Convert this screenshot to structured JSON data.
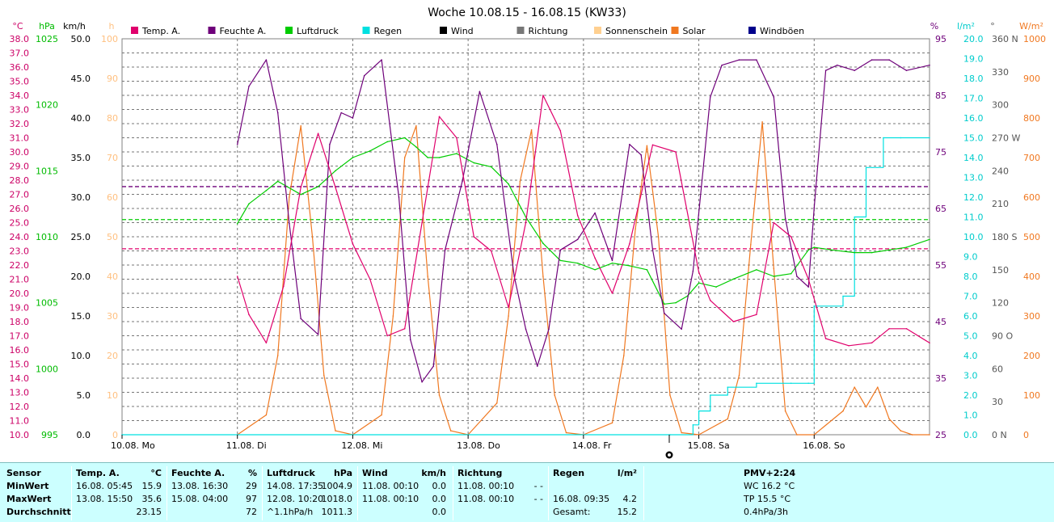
{
  "chart_data": {
    "type": "line",
    "title": "Woche 10.08.15 - 16.08.15 (KW33)",
    "x_labels": [
      "10.08. Mo",
      "11.08. Di",
      "12.08. Mi",
      "13.08. Do",
      "14.08. Fr",
      "15.08. Sa",
      "16.08. So"
    ],
    "legend": [
      {
        "name": "Temp. A.",
        "color": "#e0006c"
      },
      {
        "name": "Feuchte A.",
        "color": "#6e007a"
      },
      {
        "name": "Luftdruck",
        "color": "#00cc00"
      },
      {
        "name": "Regen",
        "color": "#00e0e0"
      },
      {
        "name": "Wind",
        "color": "#000000"
      },
      {
        "name": "Richtung",
        "color": "#777777"
      },
      {
        "name": "Sonnenschein",
        "color": "#ffd090"
      },
      {
        "name": "Solar",
        "color": "#f07820"
      },
      {
        "name": "Windböen",
        "color": "#00008b"
      }
    ],
    "axes": [
      {
        "unit": "°C",
        "color": "#cc0066",
        "ticks": [
          "38.0",
          "37.0",
          "36.0",
          "35.0",
          "34.0",
          "33.0",
          "32.0",
          "31.0",
          "30.0",
          "29.0",
          "28.0",
          "27.0",
          "26.0",
          "25.0",
          "24.0",
          "23.0",
          "22.0",
          "21.0",
          "20.0",
          "19.0",
          "18.0",
          "17.0",
          "16.0",
          "15.0",
          "14.0",
          "13.0",
          "12.0",
          "11.0",
          "10.0"
        ]
      },
      {
        "unit": "hPa",
        "color": "#00bb00",
        "ticks": [
          "1025",
          "1020",
          "1015",
          "1010",
          "1005",
          "1000",
          "995"
        ]
      },
      {
        "unit": "km/h",
        "color": "#000000",
        "ticks": [
          "50.0",
          "45.0",
          "40.0",
          "35.0",
          "30.0",
          "25.0",
          "20.0",
          "15.0",
          "10.0",
          "5.0",
          "0.0"
        ]
      },
      {
        "unit": "h",
        "color": "#ffc080",
        "ticks": [
          "100",
          "90",
          "80",
          "70",
          "60",
          "50",
          "40",
          "30",
          "20",
          "10",
          "0"
        ]
      },
      {
        "unit": "%",
        "color": "#6e007a",
        "ticks": [
          "95",
          "85",
          "75",
          "65",
          "55",
          "45",
          "35",
          "25"
        ]
      },
      {
        "unit": "l/m²",
        "color": "#00cccc",
        "ticks": [
          "20.0",
          "19.0",
          "18.0",
          "17.0",
          "16.0",
          "15.0",
          "14.0",
          "13.0",
          "12.0",
          "11.0",
          "10.0",
          "9.0",
          "8.0",
          "7.0",
          "6.0",
          "5.0",
          "4.0",
          "3.0",
          "2.0",
          "1.0",
          "0.0"
        ]
      },
      {
        "unit": "°",
        "color": "#555555",
        "ticks": [
          "360 N",
          "330",
          "300",
          "270 W",
          "240",
          "210",
          "180 S",
          "150",
          "120",
          "90 O",
          "60",
          "30",
          "0 N"
        ]
      },
      {
        "unit": "W/m²",
        "color": "#f07820",
        "ticks": [
          "1000",
          "900",
          "800",
          "700",
          "600",
          "500",
          "400",
          "300",
          "200",
          "100",
          "0"
        ]
      }
    ],
    "x_range_days": [
      0,
      7
    ],
    "temp_range": [
      10,
      38
    ],
    "humidity_range": [
      25,
      100
    ],
    "pressure_range": [
      995,
      1025
    ],
    "rain_range": [
      0,
      20
    ],
    "solar_range": [
      0,
      1000
    ],
    "series": [
      {
        "name": "Temp. A.",
        "x": [
          1.0,
          1.1,
          1.25,
          1.4,
          1.55,
          1.7,
          1.85,
          2.0,
          2.15,
          2.3,
          2.45,
          2.6,
          2.75,
          2.9,
          3.05,
          3.2,
          3.35,
          3.5,
          3.65,
          3.8,
          3.95,
          4.1,
          4.25,
          4.4,
          4.6,
          4.8,
          5.0,
          5.1,
          5.3,
          5.5,
          5.65,
          5.8,
          5.95,
          6.1,
          6.3,
          6.5,
          6.65,
          6.8,
          7.0
        ],
        "y": [
          21.2,
          18.5,
          16.5,
          20.5,
          27.5,
          31.3,
          27.5,
          23.5,
          21.0,
          17.0,
          17.5,
          25.0,
          32.5,
          31.0,
          24.0,
          23.0,
          19.0,
          25.0,
          34.0,
          31.5,
          25.5,
          22.5,
          20.0,
          23.5,
          30.5,
          30.0,
          21.5,
          19.5,
          18.0,
          18.5,
          25.0,
          24.0,
          21.0,
          16.8,
          16.3,
          16.5,
          17.5,
          17.5,
          16.5
        ]
      },
      {
        "name": "Feuchte A.",
        "x": [
          1.0,
          1.1,
          1.25,
          1.35,
          1.45,
          1.55,
          1.7,
          1.8,
          1.9,
          2.0,
          2.1,
          2.25,
          2.4,
          2.5,
          2.6,
          2.7,
          2.8,
          2.95,
          3.1,
          3.25,
          3.4,
          3.5,
          3.6,
          3.7,
          3.8,
          3.95,
          4.1,
          4.25,
          4.4,
          4.5,
          4.6,
          4.7,
          4.85,
          4.95,
          5.1,
          5.2,
          5.35,
          5.5,
          5.65,
          5.75,
          5.85,
          5.95,
          6.0,
          6.1,
          6.2,
          6.35,
          6.5,
          6.65,
          6.8,
          7.0
        ],
        "y": [
          80,
          91,
          96,
          86,
          65,
          47,
          44,
          80,
          86,
          85,
          93,
          96,
          70,
          43,
          35,
          38,
          60,
          73,
          90,
          80,
          55,
          45,
          38,
          45,
          60,
          62,
          67,
          58,
          80,
          78,
          60,
          48,
          45,
          56,
          89,
          95,
          96,
          96,
          89,
          66,
          55,
          53,
          68,
          94,
          95,
          94,
          96,
          96,
          94,
          95
        ]
      },
      {
        "name": "Luftdruck",
        "x": [
          1.0,
          1.1,
          1.25,
          1.35,
          1.55,
          1.7,
          1.85,
          2.0,
          2.15,
          2.3,
          2.45,
          2.55,
          2.65,
          2.75,
          2.9,
          3.05,
          3.2,
          3.35,
          3.5,
          3.65,
          3.8,
          3.95,
          4.1,
          4.25,
          4.4,
          4.55,
          4.7,
          4.8,
          4.9,
          5.0,
          5.15,
          5.3,
          5.5,
          5.65,
          5.8,
          5.95,
          6.0,
          6.15,
          6.35,
          6.5,
          6.65,
          6.8,
          7.0
        ],
        "y": [
          1011.0,
          1012.5,
          1013.5,
          1014.2,
          1013.2,
          1013.8,
          1015.0,
          1016.0,
          1016.5,
          1017.2,
          1017.5,
          1016.8,
          1016.0,
          1016.0,
          1016.3,
          1015.6,
          1015.3,
          1014.0,
          1011.5,
          1009.5,
          1008.2,
          1008.0,
          1007.5,
          1008.0,
          1007.8,
          1007.5,
          1004.9,
          1005.0,
          1005.5,
          1006.5,
          1006.2,
          1006.8,
          1007.5,
          1007.0,
          1007.2,
          1009.0,
          1009.2,
          1009.0,
          1008.8,
          1008.8,
          1009.0,
          1009.2,
          1009.8
        ]
      },
      {
        "name": "Regen",
        "x": [
          0,
          4.75,
          4.95,
          5.0,
          5.1,
          5.25,
          5.5,
          5.8,
          5.95,
          6.0,
          6.25,
          6.35,
          6.45,
          6.6,
          6.75,
          7.0
        ],
        "y": [
          0,
          0,
          0.5,
          1.2,
          2.0,
          2.4,
          2.6,
          2.6,
          2.6,
          6.5,
          7.0,
          11.0,
          13.5,
          15.0,
          15.0,
          15.0
        ]
      },
      {
        "name": "Solar",
        "x": [
          1.0,
          1.25,
          1.35,
          1.45,
          1.55,
          1.65,
          1.75,
          1.85,
          2.0,
          2.25,
          2.35,
          2.45,
          2.55,
          2.65,
          2.75,
          2.85,
          3.0,
          3.25,
          3.35,
          3.45,
          3.55,
          3.65,
          3.75,
          3.85,
          4.0,
          4.25,
          4.35,
          4.45,
          4.55,
          4.65,
          4.75,
          4.85,
          5.0,
          5.25,
          5.35,
          5.45,
          5.55,
          5.65,
          5.75,
          5.85,
          6.0,
          6.25,
          6.35,
          6.45,
          6.55,
          6.65,
          6.75,
          6.85,
          7.0
        ],
        "y": [
          0,
          50,
          200,
          600,
          780,
          500,
          150,
          10,
          0,
          50,
          300,
          700,
          780,
          400,
          100,
          10,
          0,
          80,
          300,
          640,
          770,
          400,
          100,
          5,
          0,
          30,
          200,
          520,
          730,
          500,
          100,
          5,
          0,
          40,
          150,
          480,
          790,
          420,
          60,
          0,
          0,
          60,
          120,
          70,
          120,
          40,
          10,
          0,
          0
        ]
      }
    ],
    "reference_lines": [
      {
        "name": "Temp. A. (Durchschnitt)",
        "value": 23.15,
        "color": "#e0006c"
      },
      {
        "name": "Feuchte A. (Durchschnitt)",
        "value": 72,
        "color": "#6e007a"
      },
      {
        "name": "Luftdruck (Durchschnitt)",
        "value": 1011.3,
        "color": "#00cc00"
      }
    ]
  },
  "stats": {
    "header": {
      "sensor": "Sensor",
      "temp": "Temp. A.",
      "temp_unit": "°C",
      "hum": "Feuchte A.",
      "hum_unit": "%",
      "press": "Luftdruck",
      "press_unit": "hPa",
      "wind": "Wind",
      "wind_unit": "km/h",
      "dir": "Richtung",
      "rain": "Regen",
      "rain_unit": "l/m²",
      "pmv": "PMV+2:24"
    },
    "min": {
      "label": "MinWert",
      "temp_time": "16.08.  05:45",
      "temp": "15.9",
      "hum_time": "13.08.  16:30",
      "hum": "29",
      "press_time": "14.08.  17:35",
      "press": "1004.9",
      "wind_time": "11.08.  00:10",
      "wind": "0.0",
      "dir_time": "11.08.  00:10",
      "dir": "- -",
      "pmv": "WC 16.2 °C"
    },
    "max": {
      "label": "MaxWert",
      "temp_time": "13.08.  15:50",
      "temp": "35.6",
      "hum_time": "15.08.  04:00",
      "hum": "97",
      "press_time": "12.08.  10:20",
      "press": "1018.0",
      "wind_time": "11.08.  00:10",
      "wind": "0.0",
      "dir_time": "11.08.  00:10",
      "dir": "- -",
      "rain_time": "16.08.  09:35",
      "rain": "4.2",
      "pmv": "TP 15.5 °C"
    },
    "avg": {
      "label": "Durchschnitt",
      "temp": "23.15",
      "hum": "72",
      "press_trend": "^1.1hPa/h",
      "press": "1011.3",
      "wind": "0.0",
      "rain_label": "Gesamt:",
      "rain": "15.2",
      "pmv": "0.4hPa/3h"
    }
  }
}
